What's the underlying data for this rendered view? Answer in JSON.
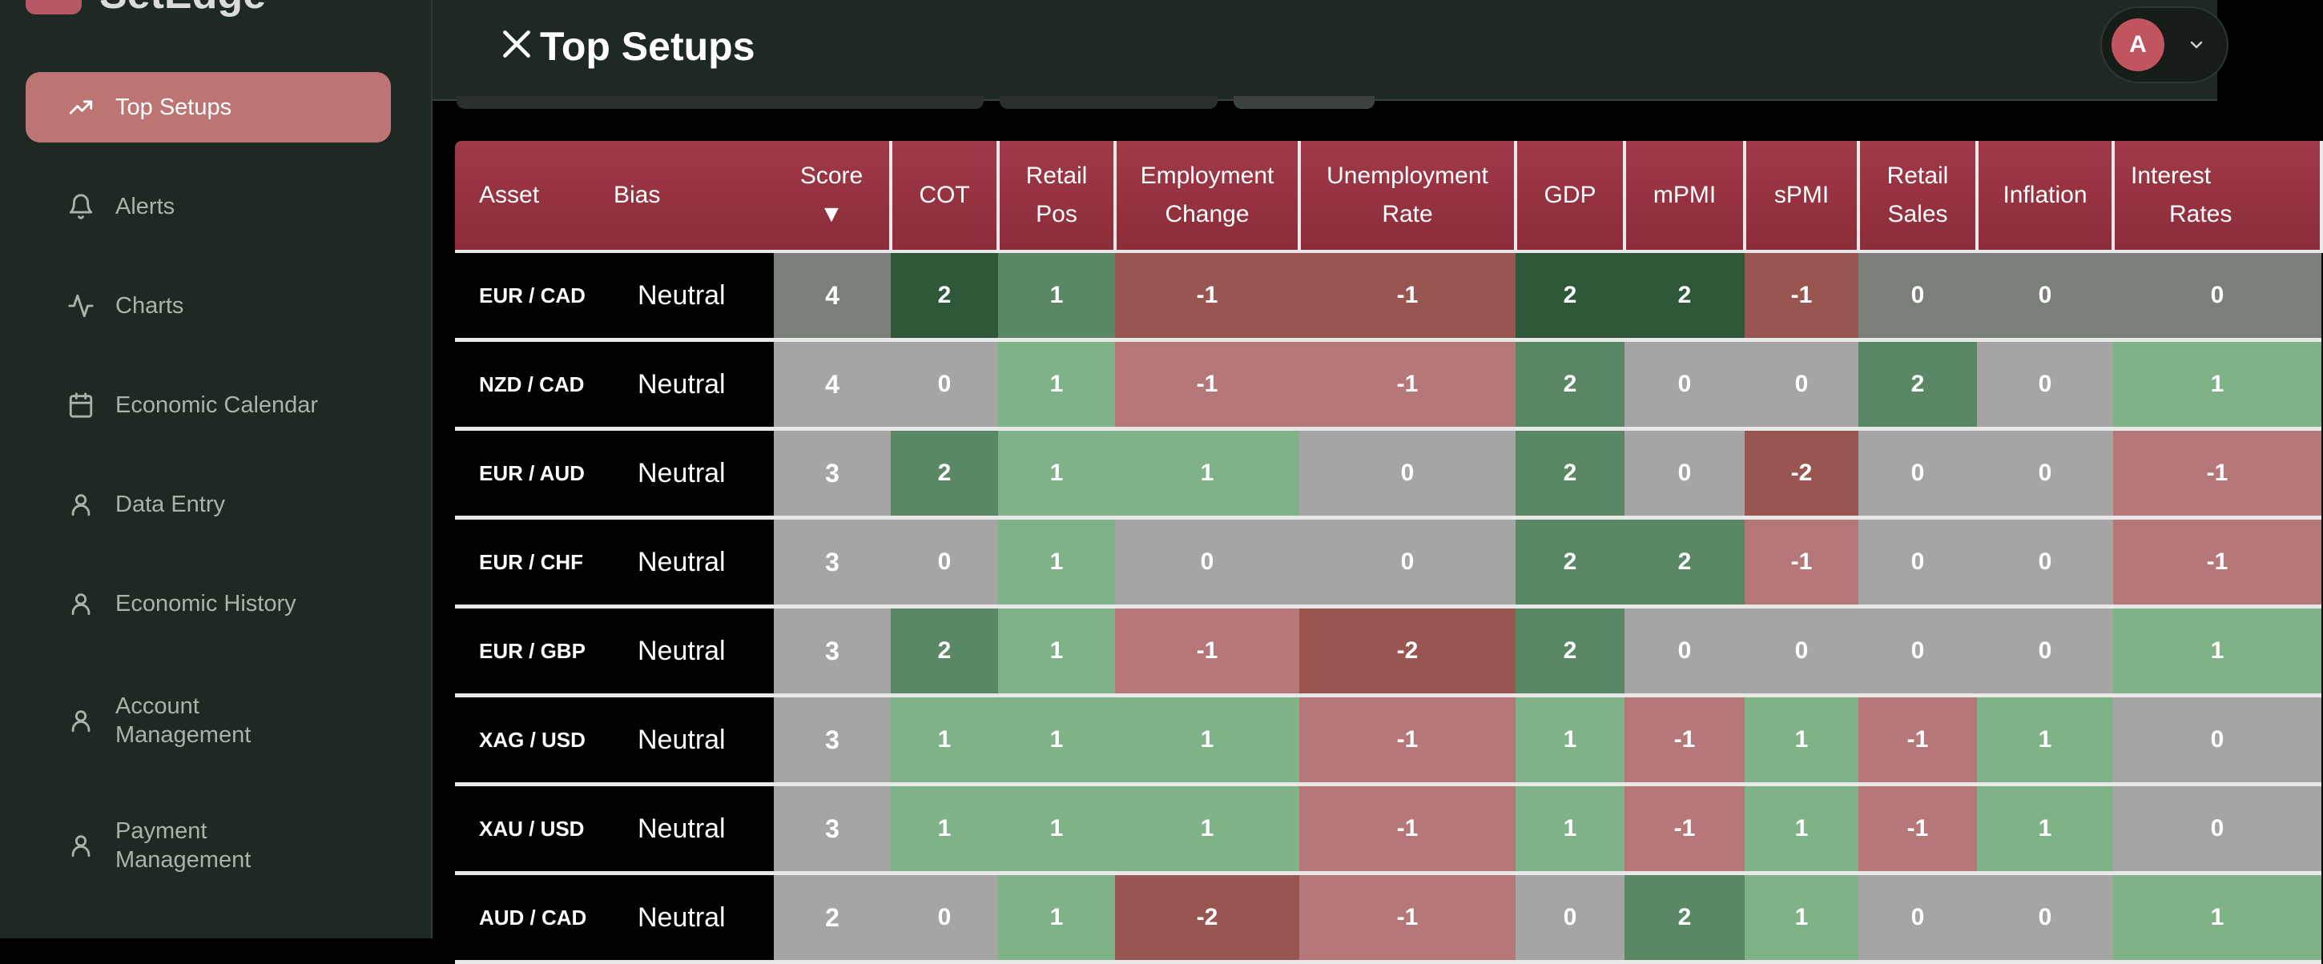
{
  "app": {
    "title_partial": "SetEdge"
  },
  "sidebar": {
    "items": [
      {
        "label": "Top Setups",
        "icon": "trending-up-icon",
        "active": true
      },
      {
        "label": "Alerts",
        "icon": "bell-icon"
      },
      {
        "label": "Charts",
        "icon": "activity-icon"
      },
      {
        "label": "Economic Calendar",
        "icon": "calendar-icon"
      },
      {
        "label": "Data Entry",
        "icon": "user-icon"
      },
      {
        "label": "Economic History",
        "icon": "user-icon"
      },
      {
        "label": "Account Management",
        "icon": "user-icon"
      },
      {
        "label": "Payment Management",
        "icon": "user-icon"
      }
    ]
  },
  "header": {
    "title": "Top Setups",
    "avatar_initial": "A"
  },
  "table": {
    "headers": {
      "asset": "Asset",
      "bias": "Bias",
      "score_l1": "Score",
      "score_sort": "▼",
      "cot": "COT",
      "retail_pos_l1": "Retail",
      "retail_pos_l2": "Pos",
      "employment_l1": "Employment",
      "employment_l2": "Change",
      "unemployment_l1": "Unemployment",
      "unemployment_l2": "Rate",
      "gdp": "GDP",
      "mpmi": "mPMI",
      "spmi": "sPMI",
      "retail_sales_l1": "Retail",
      "retail_sales_l2": "Sales",
      "inflation": "Inflation",
      "interest_l1": "Interest",
      "interest_l2": "Rates"
    },
    "rows": [
      {
        "asset": "EUR / CAD",
        "bias": "Neutral",
        "values": [
          "4",
          "2",
          "1",
          "-1",
          "-1",
          "2",
          "2",
          "-1",
          "0",
          "0",
          "0"
        ]
      },
      {
        "asset": "NZD / CAD",
        "bias": "Neutral",
        "values": [
          "4",
          "0",
          "1",
          "-1",
          "-1",
          "2",
          "0",
          "0",
          "2",
          "0",
          "1"
        ]
      },
      {
        "asset": "EUR / AUD",
        "bias": "Neutral",
        "values": [
          "3",
          "2",
          "1",
          "1",
          "0",
          "2",
          "0",
          "-2",
          "0",
          "0",
          "-1"
        ]
      },
      {
        "asset": "EUR / CHF",
        "bias": "Neutral",
        "values": [
          "3",
          "0",
          "1",
          "0",
          "0",
          "2",
          "2",
          "-1",
          "0",
          "0",
          "-1"
        ]
      },
      {
        "asset": "EUR / GBP",
        "bias": "Neutral",
        "values": [
          "3",
          "2",
          "1",
          "-1",
          "-2",
          "2",
          "0",
          "0",
          "0",
          "0",
          "1"
        ]
      },
      {
        "asset": "XAG / USD",
        "bias": "Neutral",
        "values": [
          "3",
          "1",
          "1",
          "1",
          "-1",
          "1",
          "-1",
          "1",
          "-1",
          "1",
          "0"
        ]
      },
      {
        "asset": "XAU / USD",
        "bias": "Neutral",
        "values": [
          "3",
          "1",
          "1",
          "1",
          "-1",
          "1",
          "-1",
          "1",
          "-1",
          "1",
          "0"
        ]
      },
      {
        "asset": "AUD / CAD",
        "bias": "Neutral",
        "values": [
          "2",
          "0",
          "1",
          "-2",
          "-1",
          "0",
          "2",
          "1",
          "0",
          "0",
          "1"
        ]
      }
    ]
  }
}
